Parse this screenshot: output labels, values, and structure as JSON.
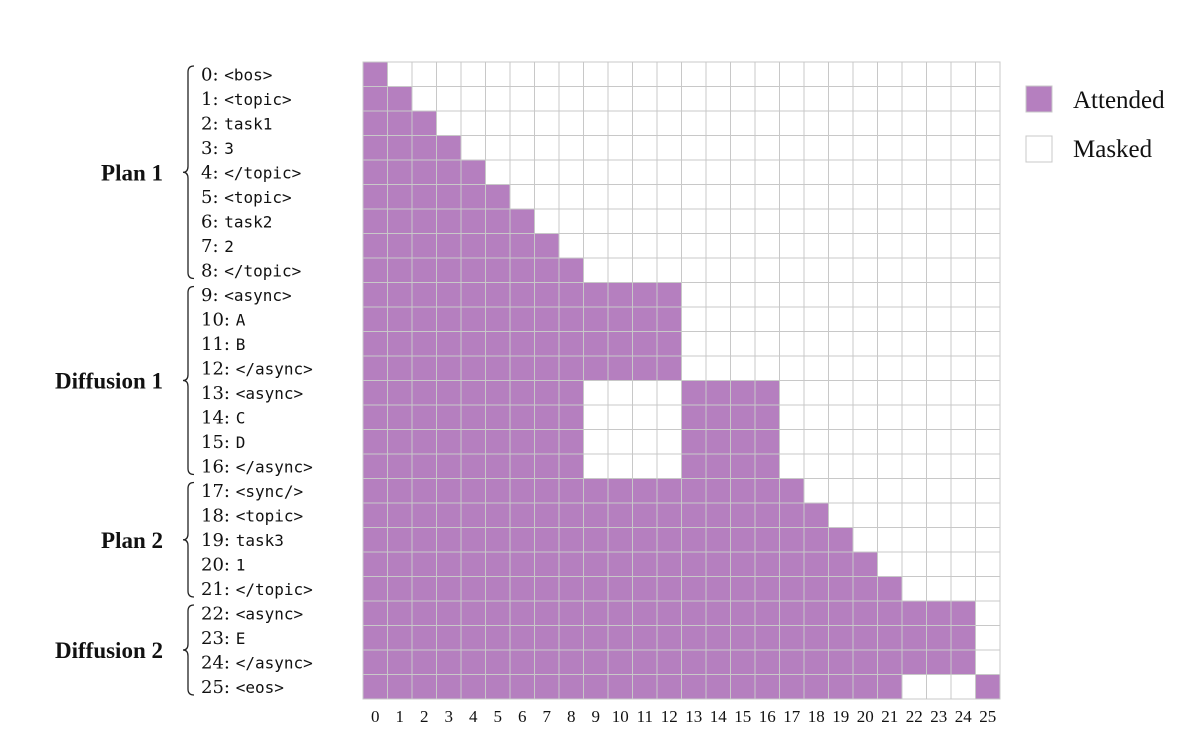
{
  "chart_data": {
    "type": "heatmap",
    "rows": [
      {
        "index": "0",
        "token": "<bos>"
      },
      {
        "index": "1",
        "token": "<topic>"
      },
      {
        "index": "2",
        "token": "task1"
      },
      {
        "index": "3",
        "token": "3"
      },
      {
        "index": "4",
        "token": "</topic>"
      },
      {
        "index": "5",
        "token": "<topic>"
      },
      {
        "index": "6",
        "token": "task2"
      },
      {
        "index": "7",
        "token": "2"
      },
      {
        "index": "8",
        "token": "</topic>"
      },
      {
        "index": "9",
        "token": "<async>"
      },
      {
        "index": "10",
        "token": "A"
      },
      {
        "index": "11",
        "token": "B"
      },
      {
        "index": "12",
        "token": "</async>"
      },
      {
        "index": "13",
        "token": "<async>"
      },
      {
        "index": "14",
        "token": "C"
      },
      {
        "index": "15",
        "token": "D"
      },
      {
        "index": "16",
        "token": "</async>"
      },
      {
        "index": "17",
        "token": "<sync/>"
      },
      {
        "index": "18",
        "token": "<topic>"
      },
      {
        "index": "19",
        "token": "task3"
      },
      {
        "index": "20",
        "token": "1"
      },
      {
        "index": "21",
        "token": "</topic>"
      },
      {
        "index": "22",
        "token": "<async>"
      },
      {
        "index": "23",
        "token": "E"
      },
      {
        "index": "24",
        "token": "</async>"
      },
      {
        "index": "25",
        "token": "<eos>"
      }
    ],
    "columns": [
      "0",
      "1",
      "2",
      "3",
      "4",
      "5",
      "6",
      "7",
      "8",
      "9",
      "10",
      "11",
      "12",
      "13",
      "14",
      "15",
      "16",
      "17",
      "18",
      "19",
      "20",
      "21",
      "22",
      "23",
      "24",
      "25"
    ],
    "groups": [
      {
        "label": "Plan 1",
        "start": 0,
        "end": 8
      },
      {
        "label": "Diffusion 1",
        "start": 9,
        "end": 16
      },
      {
        "label": "Plan 2",
        "start": 17,
        "end": 21
      },
      {
        "label": "Diffusion 2",
        "start": 22,
        "end": 25
      }
    ],
    "mask": [
      "10000000000000000000000000",
      "11000000000000000000000000",
      "11100000000000000000000000",
      "11110000000000000000000000",
      "11111000000000000000000000",
      "11111100000000000000000000",
      "11111110000000000000000000",
      "11111111000000000000000000",
      "11111111100000000000000000",
      "11111111111110000000000000",
      "11111111111110000000000000",
      "11111111111110000000000000",
      "11111111111110000000000000",
      "11111111100001111000000000",
      "11111111100001111000000000",
      "11111111100001111000000000",
      "11111111100001111000000000",
      "11111111111111111100000000",
      "11111111111111111110000000",
      "11111111111111111111000000",
      "11111111111111111111100000",
      "11111111111111111111110000",
      "11111111111111111111111110",
      "11111111111111111111111110",
      "11111111111111111111111110",
      "11111111111111111111110001"
    ],
    "legend": [
      {
        "label": "Attended",
        "value": 1,
        "color": "#b57fbf"
      },
      {
        "label": "Masked",
        "value": 0,
        "color": "#ffffff"
      }
    ],
    "grid": true,
    "grid_color": "#c8c8c8"
  }
}
